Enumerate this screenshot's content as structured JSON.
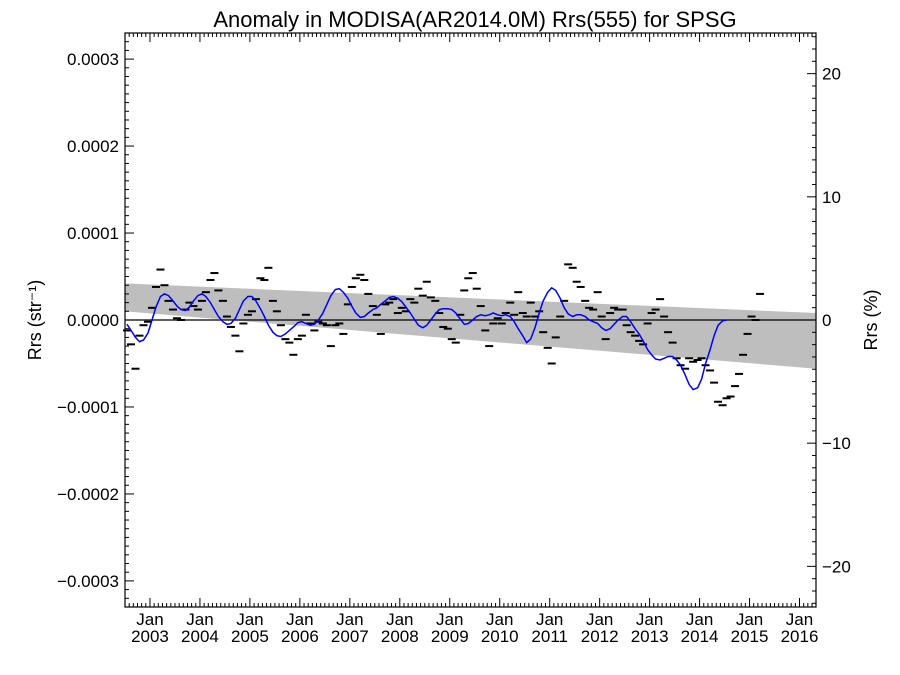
{
  "chart_data": {
    "type": "line",
    "title": "Anomaly in MODISA(AR2014.0M) Rrs(555) for SPSG",
    "ylabel_left": "Rrs (str⁻¹)",
    "ylabel_right": "Rrs (%)",
    "xlabel": "",
    "x_range_years": [
      2002.5,
      2016.33
    ],
    "ylim_left": [
      -0.00033,
      0.00033
    ],
    "ylim_right": [
      -23.3,
      23.3
    ],
    "yticks_left": [
      {
        "value": 0.0003,
        "label": "0.0003"
      },
      {
        "value": 0.0002,
        "label": "0.0002"
      },
      {
        "value": 0.0001,
        "label": "0.0001"
      },
      {
        "value": 0.0,
        "label": "0.0000"
      },
      {
        "value": -0.0001,
        "label": "−0.0001"
      },
      {
        "value": -0.0002,
        "label": "−0.0002"
      },
      {
        "value": -0.0003,
        "label": "−0.0003"
      }
    ],
    "yticks_right": [
      {
        "value": 20,
        "label": "20"
      },
      {
        "value": 10,
        "label": "10"
      },
      {
        "value": 0,
        "label": "0"
      },
      {
        "value": -10,
        "label": "−10"
      },
      {
        "value": -20,
        "label": "−20"
      }
    ],
    "xticks": [
      {
        "year": 2003,
        "label1": "Jan",
        "label2": "2003"
      },
      {
        "year": 2004,
        "label1": "Jan",
        "label2": "2004"
      },
      {
        "year": 2005,
        "label1": "Jan",
        "label2": "2005"
      },
      {
        "year": 2006,
        "label1": "Jan",
        "label2": "2006"
      },
      {
        "year": 2007,
        "label1": "Jan",
        "label2": "2007"
      },
      {
        "year": 2008,
        "label1": "Jan",
        "label2": "2008"
      },
      {
        "year": 2009,
        "label1": "Jan",
        "label2": "2009"
      },
      {
        "year": 2010,
        "label1": "Jan",
        "label2": "2010"
      },
      {
        "year": 2011,
        "label1": "Jan",
        "label2": "2011"
      },
      {
        "year": 2012,
        "label1": "Jan",
        "label2": "2012"
      },
      {
        "year": 2013,
        "label1": "Jan",
        "label2": "2013"
      },
      {
        "year": 2014,
        "label1": "Jan",
        "label2": "2014"
      },
      {
        "year": 2015,
        "label1": "Jan",
        "label2": "2015"
      },
      {
        "year": 2016,
        "label1": "Jan",
        "label2": "2016"
      }
    ],
    "zero_line": 0.0,
    "trend_band": {
      "color": "#bebebe",
      "upper_start": 4.2e-05,
      "upper_end": 8e-06,
      "lower_start": 1e-05,
      "lower_end": -5.6e-05
    },
    "monthly_anomaly": {
      "marker": "dash",
      "color": "#000000",
      "points": [
        [
          2002.54,
          -1.2e-05
        ],
        [
          2002.62,
          -2.8e-05
        ],
        [
          2002.71,
          -5.6e-05
        ],
        [
          2002.79,
          -1.8e-05
        ],
        [
          2002.87,
          -6e-06
        ],
        [
          2002.96,
          -2e-06
        ],
        [
          2003.04,
          1.4e-05
        ],
        [
          2003.12,
          3.8e-05
        ],
        [
          2003.21,
          5.8e-05
        ],
        [
          2003.29,
          4e-05
        ],
        [
          2003.37,
          2.2e-05
        ],
        [
          2003.46,
          1.2e-05
        ],
        [
          2003.54,
          2e-06
        ],
        [
          2003.62,
          0.0
        ],
        [
          2003.71,
          1.2e-05
        ],
        [
          2003.79,
          2e-05
        ],
        [
          2003.87,
          1.6e-05
        ],
        [
          2003.96,
          1.2e-05
        ],
        [
          2004.04,
          2.2e-05
        ],
        [
          2004.12,
          3.2e-05
        ],
        [
          2004.21,
          4.6e-05
        ],
        [
          2004.29,
          5.4e-05
        ],
        [
          2004.37,
          3.4e-05
        ],
        [
          2004.46,
          2.2e-05
        ],
        [
          2004.54,
          4e-06
        ],
        [
          2004.62,
          -8e-06
        ],
        [
          2004.71,
          -1.8e-05
        ],
        [
          2004.79,
          -3.6e-05
        ],
        [
          2004.87,
          -4e-06
        ],
        [
          2004.96,
          6e-06
        ],
        [
          2005.04,
          1e-05
        ],
        [
          2005.12,
          2.4e-05
        ],
        [
          2005.21,
          4.8e-05
        ],
        [
          2005.29,
          4.6e-05
        ],
        [
          2005.37,
          6e-05
        ],
        [
          2005.46,
          2.2e-05
        ],
        [
          2005.54,
          1e-05
        ],
        [
          2005.62,
          -6e-06
        ],
        [
          2005.71,
          -2.2e-05
        ],
        [
          2005.79,
          -2.6e-05
        ],
        [
          2005.87,
          -4e-05
        ],
        [
          2005.96,
          -2.2e-05
        ],
        [
          2006.04,
          -1.8e-05
        ],
        [
          2006.12,
          6e-06
        ],
        [
          2006.21,
          -4e-06
        ],
        [
          2006.29,
          -1.2e-05
        ],
        [
          2006.37,
          -2e-06
        ],
        [
          2006.46,
          -4e-06
        ],
        [
          2006.54,
          -6e-06
        ],
        [
          2006.62,
          -3e-05
        ],
        [
          2006.71,
          -6e-06
        ],
        [
          2006.79,
          -4e-06
        ],
        [
          2006.87,
          -1.6e-05
        ],
        [
          2006.96,
          1.8e-05
        ],
        [
          2007.04,
          3.8e-05
        ],
        [
          2007.12,
          4.8e-05
        ],
        [
          2007.21,
          5.2e-05
        ],
        [
          2007.29,
          4.6e-05
        ],
        [
          2007.37,
          3e-05
        ],
        [
          2007.46,
          1.6e-05
        ],
        [
          2007.54,
          6e-06
        ],
        [
          2007.62,
          -1.6e-05
        ],
        [
          2007.71,
          1.8e-05
        ],
        [
          2007.79,
          2e-05
        ],
        [
          2007.87,
          2.4e-05
        ],
        [
          2007.96,
          8e-06
        ],
        [
          2008.04,
          1.4e-05
        ],
        [
          2008.12,
          1e-05
        ],
        [
          2008.21,
          2.4e-05
        ],
        [
          2008.29,
          2e-05
        ],
        [
          2008.37,
          3.6e-05
        ],
        [
          2008.46,
          2.8e-05
        ],
        [
          2008.54,
          4.4e-05
        ],
        [
          2008.62,
          2.6e-05
        ],
        [
          2008.71,
          2.2e-05
        ],
        [
          2008.79,
          8e-06
        ],
        [
          2008.87,
          -8e-06
        ],
        [
          2008.96,
          -1e-05
        ],
        [
          2009.04,
          -2.2e-05
        ],
        [
          2009.12,
          -2.6e-05
        ],
        [
          2009.21,
          6e-06
        ],
        [
          2009.29,
          3.4e-05
        ],
        [
          2009.37,
          4.8e-05
        ],
        [
          2009.46,
          5.4e-05
        ],
        [
          2009.54,
          3.6e-05
        ],
        [
          2009.62,
          1.6e-05
        ],
        [
          2009.71,
          -1.2e-05
        ],
        [
          2009.79,
          -3e-05
        ],
        [
          2009.87,
          -4e-06
        ],
        [
          2009.96,
          2e-06
        ],
        [
          2010.04,
          -4e-06
        ],
        [
          2010.12,
          8e-06
        ],
        [
          2010.21,
          2e-05
        ],
        [
          2010.29,
          6e-06
        ],
        [
          2010.37,
          3.2e-05
        ],
        [
          2010.46,
          8e-06
        ],
        [
          2010.54,
          4e-06
        ],
        [
          2010.62,
          2e-05
        ],
        [
          2010.71,
          4e-06
        ],
        [
          2010.79,
          1e-05
        ],
        [
          2010.87,
          -1.4e-05
        ],
        [
          2010.96,
          -3.2e-05
        ],
        [
          2011.04,
          -5e-05
        ],
        [
          2011.12,
          -2e-05
        ],
        [
          2011.21,
          4e-06
        ],
        [
          2011.29,
          2.2e-05
        ],
        [
          2011.37,
          6.4e-05
        ],
        [
          2011.46,
          6e-05
        ],
        [
          2011.54,
          4.4e-05
        ],
        [
          2011.62,
          3.8e-05
        ],
        [
          2011.71,
          2.2e-05
        ],
        [
          2011.79,
          1.4e-05
        ],
        [
          2011.87,
          1.2e-05
        ],
        [
          2011.96,
          3.2e-05
        ],
        [
          2012.04,
          4e-06
        ],
        [
          2012.12,
          -2.2e-05
        ],
        [
          2012.21,
          8e-06
        ],
        [
          2012.29,
          1.4e-05
        ],
        [
          2012.37,
          1.2e-05
        ],
        [
          2012.46,
          1.2e-05
        ],
        [
          2012.54,
          -6e-06
        ],
        [
          2012.62,
          -1.4e-05
        ],
        [
          2012.71,
          -1.8e-05
        ],
        [
          2012.79,
          -2.4e-05
        ],
        [
          2012.87,
          -2.8e-05
        ],
        [
          2012.96,
          -4e-06
        ],
        [
          2013.04,
          8e-06
        ],
        [
          2013.12,
          1.2e-05
        ],
        [
          2013.21,
          2.4e-05
        ],
        [
          2013.29,
          4e-06
        ],
        [
          2013.37,
          -1.4e-05
        ],
        [
          2013.46,
          -2.6e-05
        ],
        [
          2013.54,
          -4.4e-05
        ],
        [
          2013.62,
          -5.2e-05
        ],
        [
          2013.71,
          -5.6e-05
        ],
        [
          2013.79,
          -4.4e-05
        ],
        [
          2013.87,
          -4.8e-05
        ],
        [
          2013.96,
          -4.6e-05
        ],
        [
          2014.04,
          -4.4e-05
        ],
        [
          2014.12,
          -5.2e-05
        ],
        [
          2014.21,
          -5.8e-05
        ],
        [
          2014.29,
          -7.2e-05
        ],
        [
          2014.37,
          -9.4e-05
        ],
        [
          2014.46,
          -9.8e-05
        ],
        [
          2014.54,
          -9e-05
        ],
        [
          2014.62,
          -8.8e-05
        ],
        [
          2014.71,
          -7.6e-05
        ],
        [
          2014.79,
          -6.2e-05
        ],
        [
          2014.87,
          -4e-05
        ],
        [
          2014.96,
          -1.6e-05
        ],
        [
          2015.04,
          4e-06
        ],
        [
          2015.12,
          0.0
        ],
        [
          2015.21,
          3e-05
        ]
      ]
    },
    "smoothed_series": {
      "name": "",
      "color": "#0000ff",
      "points": [
        [
          2002.54,
          -5e-06
        ],
        [
          2002.62,
          -1.2e-05
        ],
        [
          2002.71,
          -2e-05
        ],
        [
          2002.79,
          -2.5e-05
        ],
        [
          2002.87,
          -2.3e-05
        ],
        [
          2002.96,
          -1.5e-05
        ],
        [
          2003.04,
          0.0
        ],
        [
          2003.12,
          1.5e-05
        ],
        [
          2003.21,
          2.7e-05
        ],
        [
          2003.29,
          3e-05
        ],
        [
          2003.37,
          2.8e-05
        ],
        [
          2003.46,
          2.2e-05
        ],
        [
          2003.54,
          1.6e-05
        ],
        [
          2003.62,
          1.2e-05
        ],
        [
          2003.71,
          1.1e-05
        ],
        [
          2003.79,
          1.5e-05
        ],
        [
          2003.87,
          2.2e-05
        ],
        [
          2003.96,
          2.8e-05
        ],
        [
          2004.04,
          3e-05
        ],
        [
          2004.12,
          2.7e-05
        ],
        [
          2004.21,
          2e-05
        ],
        [
          2004.29,
          1.2e-05
        ],
        [
          2004.37,
          4e-06
        ],
        [
          2004.46,
          -2e-06
        ],
        [
          2004.54,
          -5e-06
        ],
        [
          2004.62,
          -4e-06
        ],
        [
          2004.71,
          2e-06
        ],
        [
          2004.79,
          1.2e-05
        ],
        [
          2004.87,
          2.2e-05
        ],
        [
          2004.96,
          2.7e-05
        ],
        [
          2005.04,
          2.7e-05
        ],
        [
          2005.12,
          2.2e-05
        ],
        [
          2005.21,
          1.3e-05
        ],
        [
          2005.29,
          4e-06
        ],
        [
          2005.37,
          -6e-06
        ],
        [
          2005.46,
          -1.4e-05
        ],
        [
          2005.54,
          -1.8e-05
        ],
        [
          2005.62,
          -1.9e-05
        ],
        [
          2005.71,
          -1.6e-05
        ],
        [
          2005.79,
          -1.2e-05
        ],
        [
          2005.87,
          -8e-06
        ],
        [
          2005.96,
          -3e-06
        ],
        [
          2006.04,
          -2e-06
        ],
        [
          2006.12,
          -4e-06
        ],
        [
          2006.21,
          -6e-06
        ],
        [
          2006.29,
          -5e-06
        ],
        [
          2006.37,
          0.0
        ],
        [
          2006.46,
          8e-06
        ],
        [
          2006.54,
          1.8e-05
        ],
        [
          2006.62,
          2.8e-05
        ],
        [
          2006.71,
          3.5e-05
        ],
        [
          2006.79,
          3.6e-05
        ],
        [
          2006.87,
          3.2e-05
        ],
        [
          2006.96,
          2.5e-05
        ],
        [
          2007.04,
          1.6e-05
        ],
        [
          2007.12,
          8e-06
        ],
        [
          2007.21,
          3e-06
        ],
        [
          2007.29,
          4e-06
        ],
        [
          2007.37,
          8e-06
        ],
        [
          2007.46,
          1.2e-05
        ],
        [
          2007.54,
          1.4e-05
        ],
        [
          2007.62,
          1.8e-05
        ],
        [
          2007.71,
          2.2e-05
        ],
        [
          2007.79,
          2.6e-05
        ],
        [
          2007.87,
          2.7e-05
        ],
        [
          2007.96,
          2.5e-05
        ],
        [
          2008.04,
          2.1e-05
        ],
        [
          2008.12,
          1.5e-05
        ],
        [
          2008.21,
          8e-06
        ],
        [
          2008.29,
          1e-06
        ],
        [
          2008.37,
          -6e-06
        ],
        [
          2008.46,
          -9e-06
        ],
        [
          2008.54,
          -6e-06
        ],
        [
          2008.62,
          0.0
        ],
        [
          2008.71,
          7e-06
        ],
        [
          2008.79,
          1.2e-05
        ],
        [
          2008.87,
          1.3e-05
        ],
        [
          2008.96,
          1.3e-05
        ],
        [
          2009.04,
          1.2e-05
        ],
        [
          2009.12,
          8e-06
        ],
        [
          2009.21,
          1e-06
        ],
        [
          2009.29,
          -5e-06
        ],
        [
          2009.37,
          -4e-06
        ],
        [
          2009.46,
          0.0
        ],
        [
          2009.54,
          4e-06
        ],
        [
          2009.62,
          6e-06
        ],
        [
          2009.71,
          5e-06
        ],
        [
          2009.79,
          6e-06
        ],
        [
          2009.87,
          8e-06
        ],
        [
          2009.96,
          6e-06
        ],
        [
          2010.04,
          5e-06
        ],
        [
          2010.12,
          6e-06
        ],
        [
          2010.21,
          4e-06
        ],
        [
          2010.29,
          -2e-06
        ],
        [
          2010.37,
          -1e-05
        ],
        [
          2010.46,
          -1.8e-05
        ],
        [
          2010.54,
          -2.6e-05
        ],
        [
          2010.62,
          -2.2e-05
        ],
        [
          2010.71,
          -8e-06
        ],
        [
          2010.79,
          8e-06
        ],
        [
          2010.87,
          2.2e-05
        ],
        [
          2010.96,
          3.2e-05
        ],
        [
          2011.04,
          3.7e-05
        ],
        [
          2011.12,
          3.4e-05
        ],
        [
          2011.21,
          2.5e-05
        ],
        [
          2011.29,
          1.4e-05
        ],
        [
          2011.37,
          7e-06
        ],
        [
          2011.46,
          4e-06
        ],
        [
          2011.54,
          6e-06
        ],
        [
          2011.62,
          6e-06
        ],
        [
          2011.71,
          4e-06
        ],
        [
          2011.79,
          0.0
        ],
        [
          2011.87,
          -2e-06
        ],
        [
          2011.96,
          -4e-06
        ],
        [
          2012.04,
          -9e-06
        ],
        [
          2012.12,
          -1.2e-05
        ],
        [
          2012.21,
          -1e-05
        ],
        [
          2012.29,
          -5e-06
        ],
        [
          2012.37,
          0.0
        ],
        [
          2012.46,
          4e-06
        ],
        [
          2012.54,
          4e-06
        ],
        [
          2012.62,
          -2e-06
        ],
        [
          2012.71,
          -1e-05
        ],
        [
          2012.79,
          -1.6e-05
        ],
        [
          2012.87,
          -2.4e-05
        ],
        [
          2012.96,
          -3.4e-05
        ],
        [
          2013.04,
          -4e-05
        ],
        [
          2013.12,
          -4.5e-05
        ],
        [
          2013.21,
          -4.6e-05
        ],
        [
          2013.29,
          -4.4e-05
        ],
        [
          2013.37,
          -4.2e-05
        ],
        [
          2013.46,
          -4.2e-05
        ],
        [
          2013.54,
          -4.6e-05
        ],
        [
          2013.62,
          -5.2e-05
        ],
        [
          2013.71,
          -6.3e-05
        ],
        [
          2013.79,
          -7.4e-05
        ],
        [
          2013.87,
          -8e-05
        ],
        [
          2013.96,
          -7.8e-05
        ],
        [
          2014.04,
          -6.8e-05
        ],
        [
          2014.12,
          -5e-05
        ],
        [
          2014.21,
          -3.4e-05
        ],
        [
          2014.29,
          -1.8e-05
        ],
        [
          2014.37,
          -6e-06
        ],
        [
          2014.46,
          -1e-06
        ],
        [
          2014.54,
          0.0
        ]
      ]
    }
  }
}
